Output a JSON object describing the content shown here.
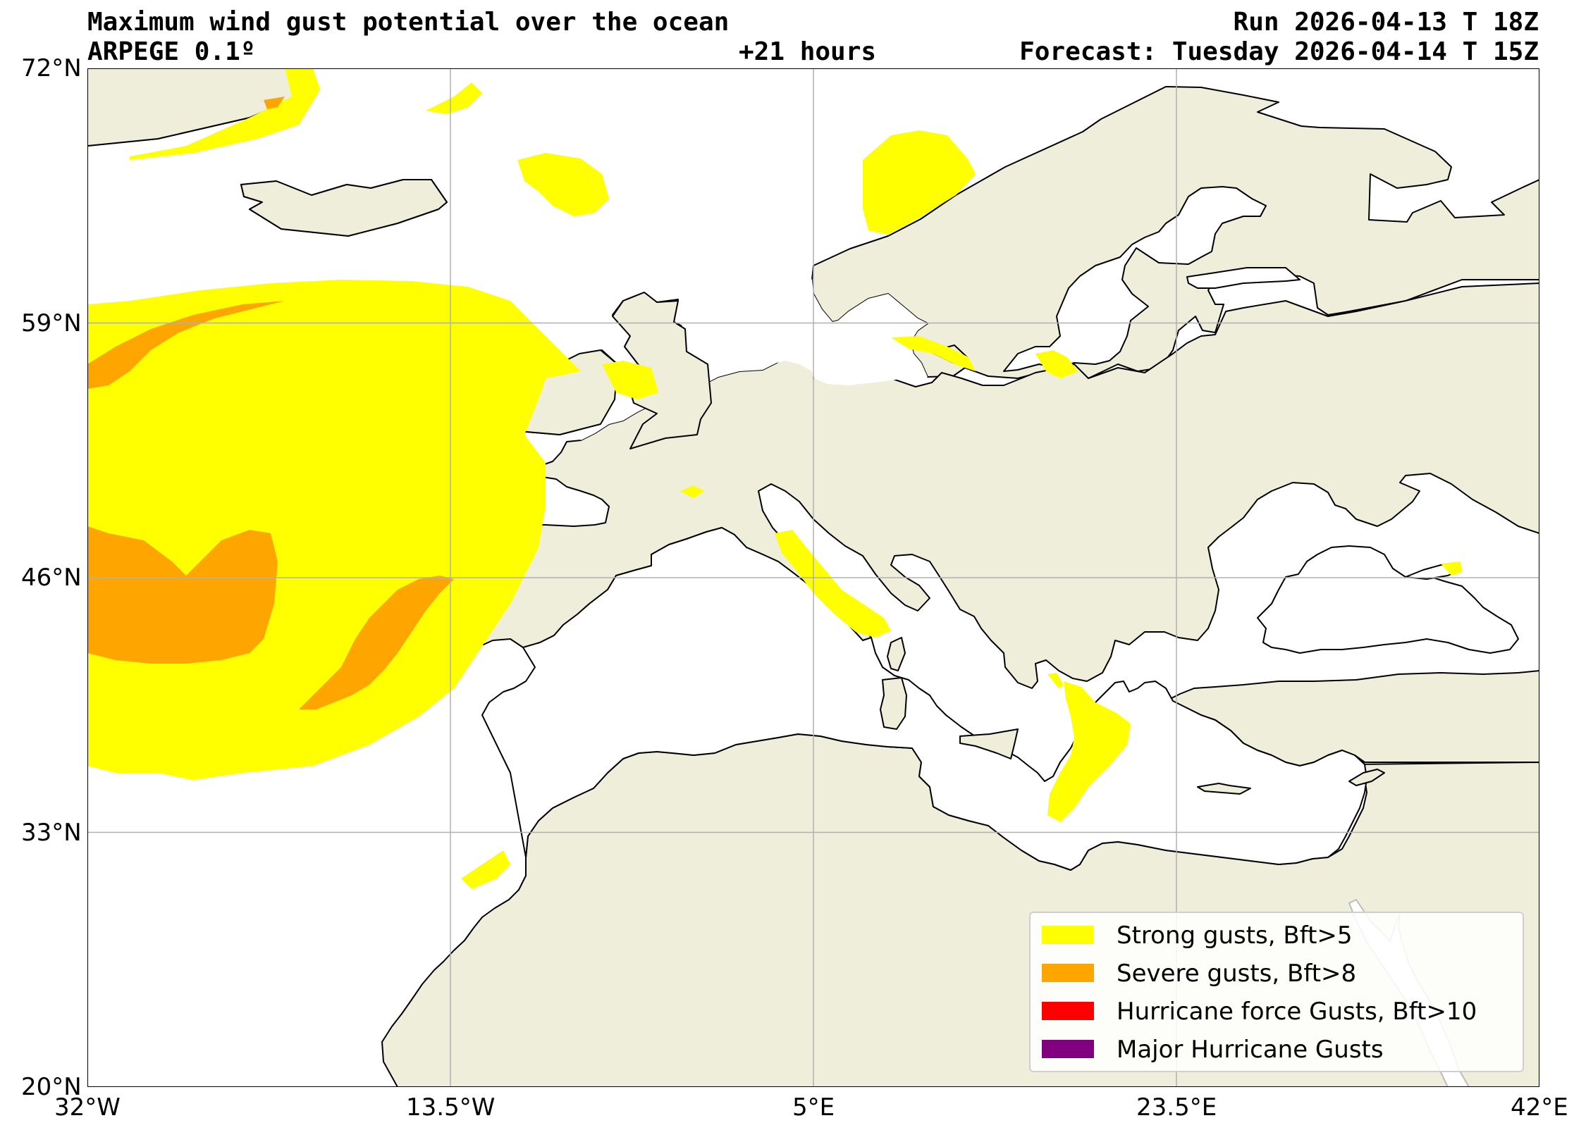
{
  "header": {
    "title": "Maximum wind gust potential over the ocean",
    "model": "ARPEGE 0.1º",
    "run": "Run 2026-04-13 T 18Z",
    "lead_time": "+21 hours",
    "forecast": "Forecast: Tuesday 2026-04-14 T 15Z"
  },
  "map": {
    "projection": "plate-carree",
    "lon_range": [
      -32,
      42
    ],
    "lat_range": [
      20,
      72
    ],
    "gridlines": true,
    "land_color": "#efeedb",
    "ocean_color": "#ffffff",
    "coastline_color": "#000000",
    "x_ticks": [
      {
        "value": -32,
        "label": "32°W"
      },
      {
        "value": -13.5,
        "label": "13.5°W"
      },
      {
        "value": 5,
        "label": "5°E"
      },
      {
        "value": 23.5,
        "label": "23.5°E"
      },
      {
        "value": 42,
        "label": "42°E"
      }
    ],
    "y_ticks": [
      {
        "value": 72,
        "label": "72°N"
      },
      {
        "value": 59,
        "label": "59°N"
      },
      {
        "value": 46,
        "label": "46°N"
      },
      {
        "value": 33,
        "label": "33°N"
      },
      {
        "value": 20,
        "label": "20°N"
      }
    ]
  },
  "legend": {
    "placement": "lower-right",
    "items": [
      {
        "label": "Strong gusts, Bft>5",
        "color": "#ffff00"
      },
      {
        "label": "Severe gusts, Bft>8",
        "color": "#ffa500"
      },
      {
        "label": "Hurricane force Gusts, Bft>10",
        "color": "#ff0000"
      },
      {
        "label": "Major Hurricane Gusts",
        "color": "#800080"
      }
    ]
  }
}
